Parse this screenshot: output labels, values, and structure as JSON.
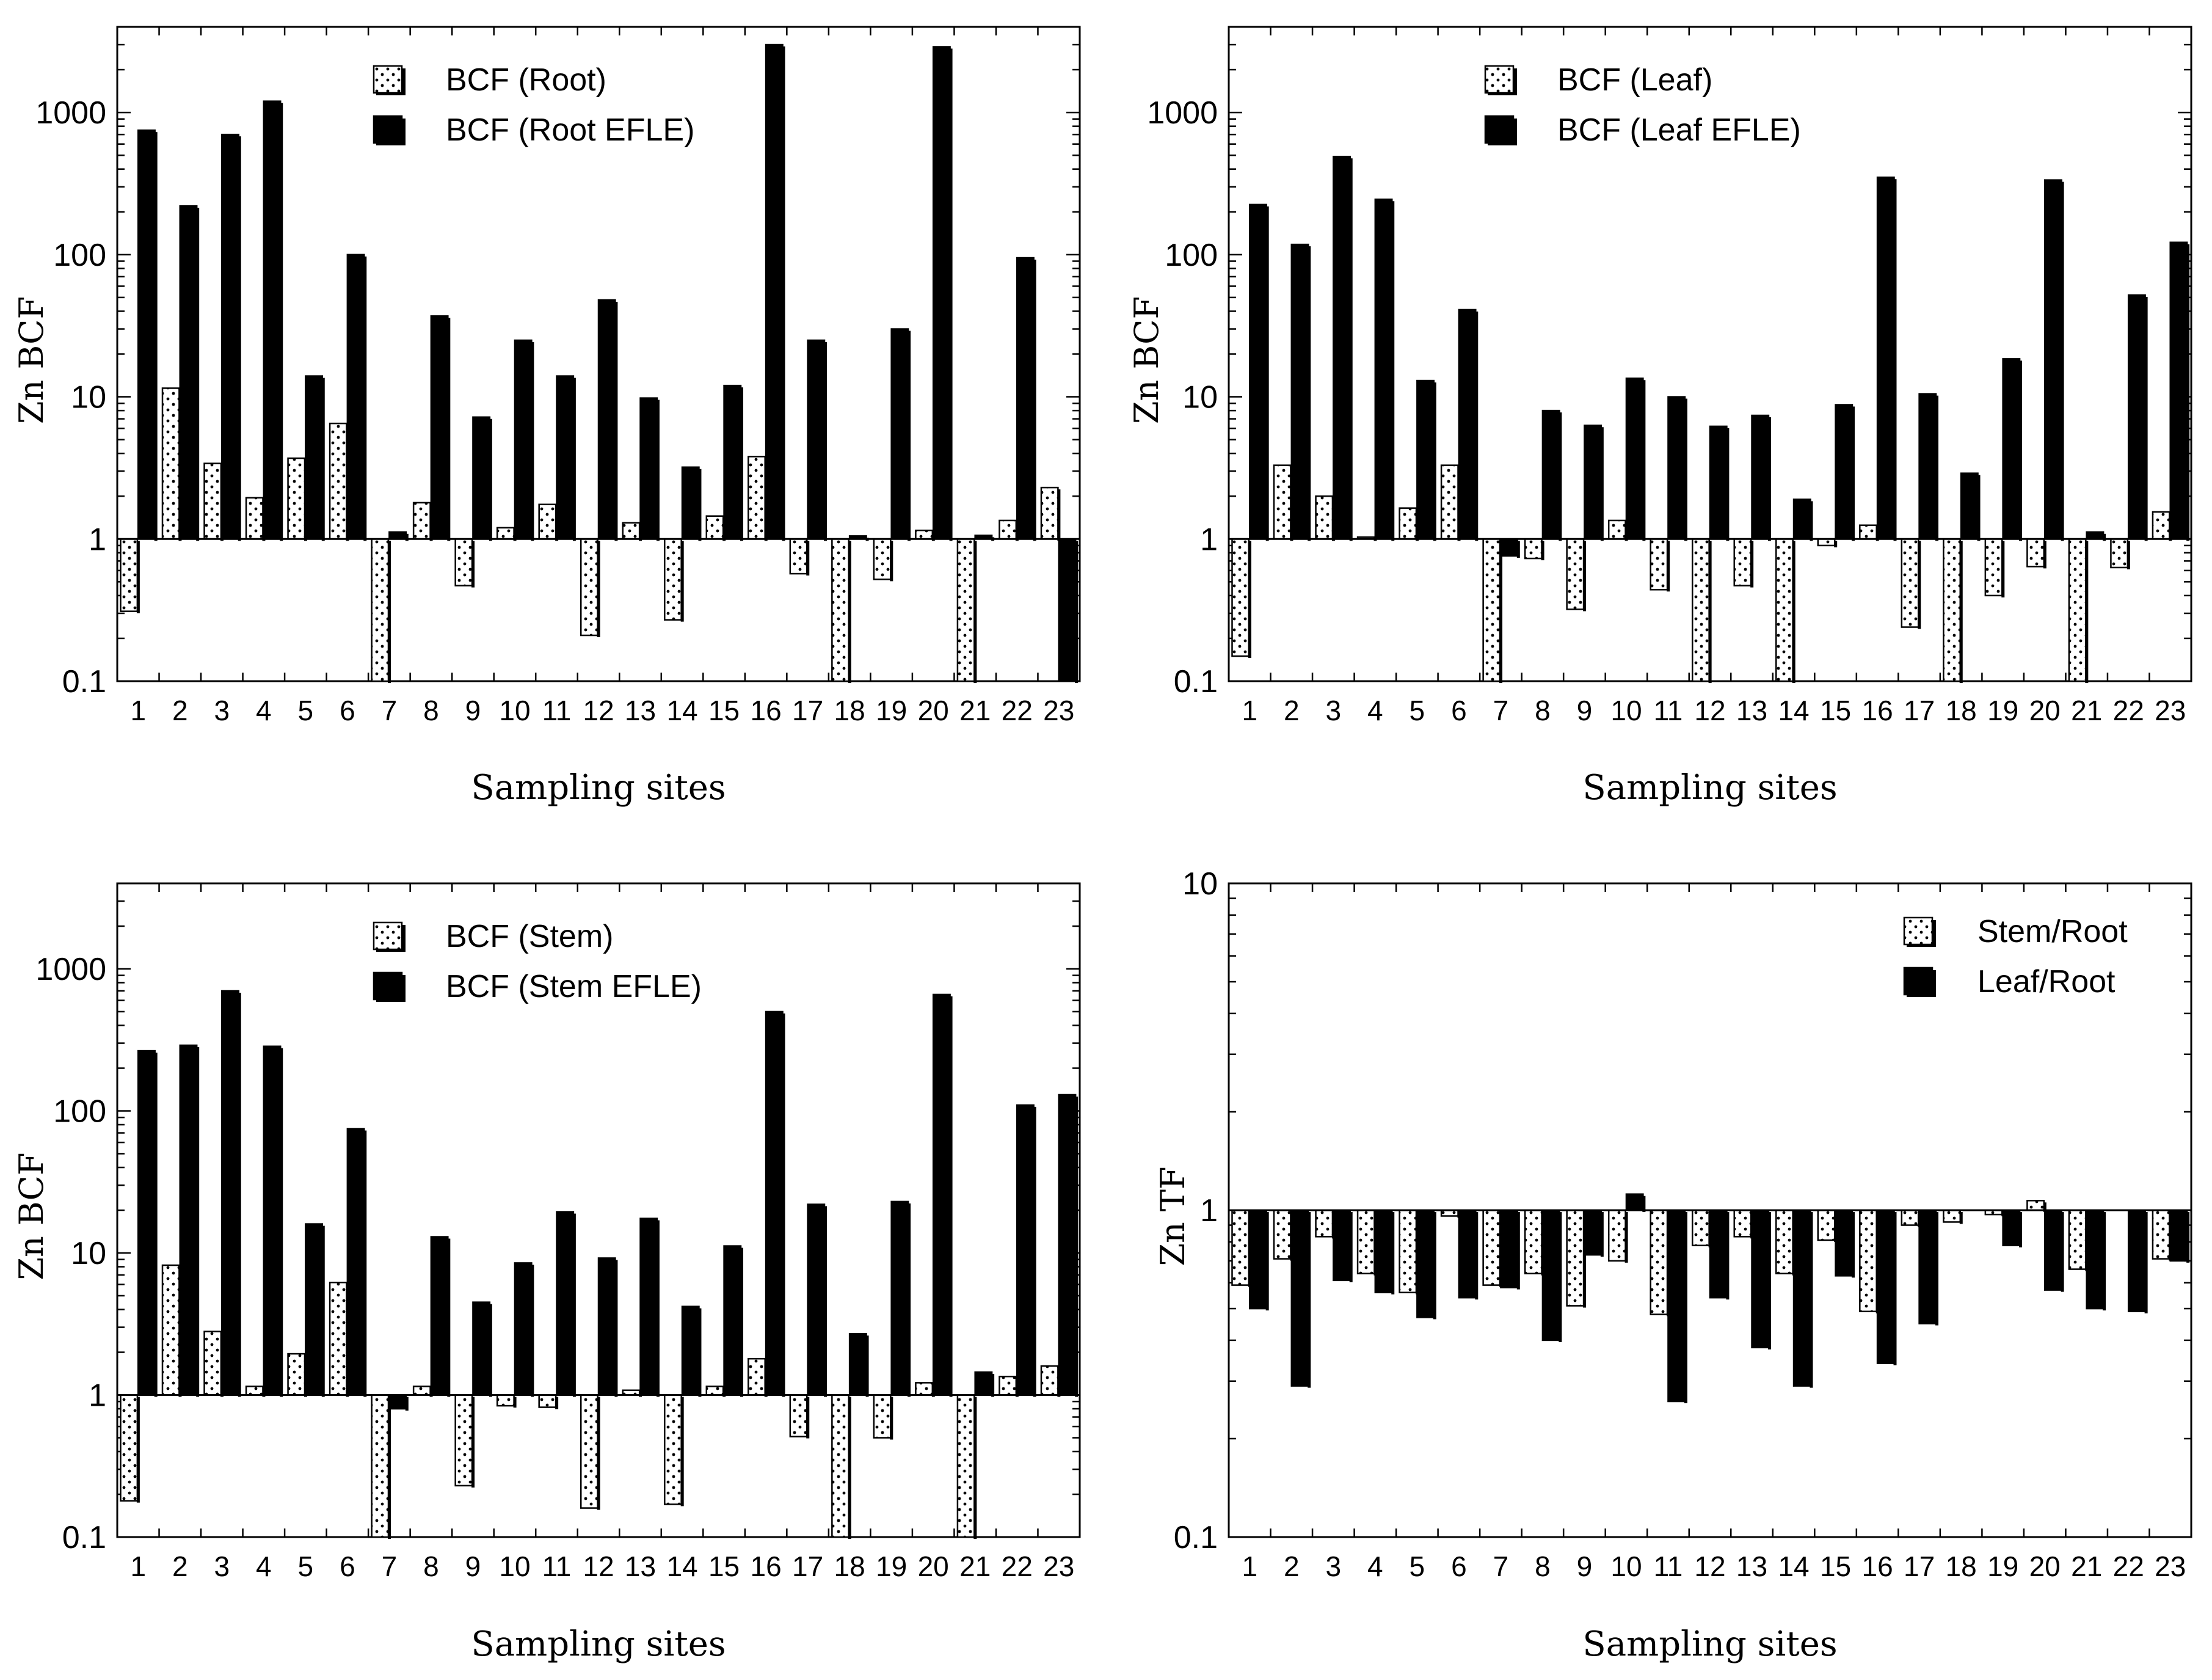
{
  "chart_data": [
    {
      "type": "bar",
      "panel": "top-left",
      "yscale": "log",
      "ylim": [
        0.1,
        4000
      ],
      "yticks": [
        0.1,
        1,
        10,
        100,
        1000
      ],
      "ytick_labels": [
        "0.1",
        "1",
        "10",
        "100",
        "1000"
      ],
      "baseline": 1,
      "xlabel": "Sampling sites",
      "ylabel": "Zn BCF",
      "legend_position": "top-center",
      "categories": [
        "1",
        "2",
        "3",
        "4",
        "5",
        "6",
        "7",
        "8",
        "9",
        "10",
        "11",
        "12",
        "13",
        "14",
        "15",
        "16",
        "17",
        "18",
        "19",
        "20",
        "21",
        "22",
        "23"
      ],
      "series": [
        {
          "name": "BCF (Root)",
          "style": "dotted",
          "values": [
            0.31,
            11.5,
            3.4,
            1.95,
            3.7,
            6.5,
            0.1,
            1.8,
            0.47,
            1.2,
            1.75,
            0.21,
            1.3,
            0.27,
            1.45,
            3.8,
            0.57,
            0.1,
            0.52,
            1.15,
            0.1,
            1.35,
            2.3
          ]
        },
        {
          "name": "BCF (Root EFLE)",
          "style": "solid",
          "values": [
            750,
            220,
            700,
            1200,
            14,
            100,
            1.12,
            37,
            7.2,
            25,
            14,
            48,
            9.8,
            3.2,
            12,
            3000,
            25,
            1.05,
            30,
            2900,
            1.06,
            95,
            0.1
          ]
        }
      ]
    },
    {
      "type": "bar",
      "panel": "top-right",
      "yscale": "log",
      "ylim": [
        0.1,
        4000
      ],
      "yticks": [
        0.1,
        1,
        10,
        100,
        1000
      ],
      "ytick_labels": [
        "0.1",
        "1",
        "10",
        "100",
        "1000"
      ],
      "baseline": 1,
      "xlabel": "Sampling sites",
      "ylabel": "Zn BCF",
      "legend_position": "top-center",
      "categories": [
        "1",
        "2",
        "3",
        "4",
        "5",
        "6",
        "7",
        "8",
        "9",
        "10",
        "11",
        "12",
        "13",
        "14",
        "15",
        "16",
        "17",
        "18",
        "19",
        "20",
        "21",
        "22",
        "23"
      ],
      "series": [
        {
          "name": "BCF (Leaf)",
          "style": "dotted",
          "values": [
            0.15,
            3.3,
            2.0,
            1.03,
            1.65,
            3.3,
            0.1,
            0.73,
            0.32,
            1.35,
            0.44,
            0.1,
            0.47,
            0.1,
            0.9,
            1.25,
            0.24,
            0.1,
            0.4,
            0.64,
            0.1,
            0.63,
            1.55
          ]
        },
        {
          "name": "BCF (Leaf EFLE)",
          "style": "solid",
          "values": [
            225,
            118,
            490,
            245,
            13,
            41,
            0.76,
            8,
            6.3,
            13.5,
            10,
            6.2,
            7.4,
            1.9,
            8.8,
            350,
            10.5,
            2.9,
            18.5,
            335,
            1.12,
            52,
            122
          ]
        }
      ]
    },
    {
      "type": "bar",
      "panel": "bottom-left",
      "yscale": "log",
      "ylim": [
        0.1,
        4000
      ],
      "yticks": [
        0.1,
        1,
        10,
        100,
        1000
      ],
      "ytick_labels": [
        "0.1",
        "1",
        "10",
        "100",
        "1000"
      ],
      "baseline": 1,
      "xlabel": "Sampling sites",
      "ylabel": "Zn BCF",
      "legend_position": "top-center",
      "categories": [
        "1",
        "2",
        "3",
        "4",
        "5",
        "6",
        "7",
        "8",
        "9",
        "10",
        "11",
        "12",
        "13",
        "14",
        "15",
        "16",
        "17",
        "18",
        "19",
        "20",
        "21",
        "22",
        "23"
      ],
      "series": [
        {
          "name": "BCF (Stem)",
          "style": "dotted",
          "values": [
            0.18,
            8.2,
            2.8,
            1.15,
            1.95,
            6.2,
            0.1,
            1.15,
            0.23,
            0.84,
            0.82,
            0.16,
            1.08,
            0.17,
            1.15,
            1.8,
            0.51,
            0.1,
            0.5,
            1.22,
            0.1,
            1.35,
            1.6
          ]
        },
        {
          "name": "BCF (Stem EFLE)",
          "style": "solid",
          "values": [
            265,
            290,
            700,
            285,
            16,
            75,
            0.8,
            13,
            4.5,
            8.5,
            19.5,
            9.2,
            17.5,
            4.2,
            11.2,
            500,
            22,
            2.7,
            23,
            660,
            1.45,
            110,
            130
          ]
        }
      ]
    },
    {
      "type": "bar",
      "panel": "bottom-right",
      "yscale": "log",
      "ylim": [
        0.1,
        10
      ],
      "yticks": [
        0.1,
        1,
        10
      ],
      "ytick_labels": [
        "0.1",
        "1",
        "10"
      ],
      "baseline": 1,
      "xlabel": "Sampling sites",
      "ylabel": "Zn TF",
      "legend_position": "top-right",
      "categories": [
        "1",
        "2",
        "3",
        "4",
        "5",
        "6",
        "7",
        "8",
        "9",
        "10",
        "11",
        "12",
        "13",
        "14",
        "15",
        "16",
        "17",
        "18",
        "19",
        "20",
        "21",
        "22",
        "23"
      ],
      "series": [
        {
          "name": "Stem/Root",
          "style": "dotted",
          "values": [
            0.59,
            0.71,
            0.83,
            0.64,
            0.56,
            0.96,
            0.59,
            0.64,
            0.51,
            0.7,
            0.48,
            0.78,
            0.83,
            0.64,
            0.81,
            0.49,
            0.9,
            0.92,
            0.97,
            1.07,
            0.66,
            1.0,
            0.71
          ]
        },
        {
          "name": "Leaf/Root",
          "style": "solid",
          "values": [
            0.5,
            0.29,
            0.61,
            0.56,
            0.47,
            0.54,
            0.58,
            0.4,
            0.73,
            1.12,
            0.26,
            0.54,
            0.38,
            0.29,
            0.63,
            0.34,
            0.45,
            1.0,
            0.78,
            0.57,
            0.5,
            0.49,
            0.7
          ]
        }
      ]
    }
  ]
}
